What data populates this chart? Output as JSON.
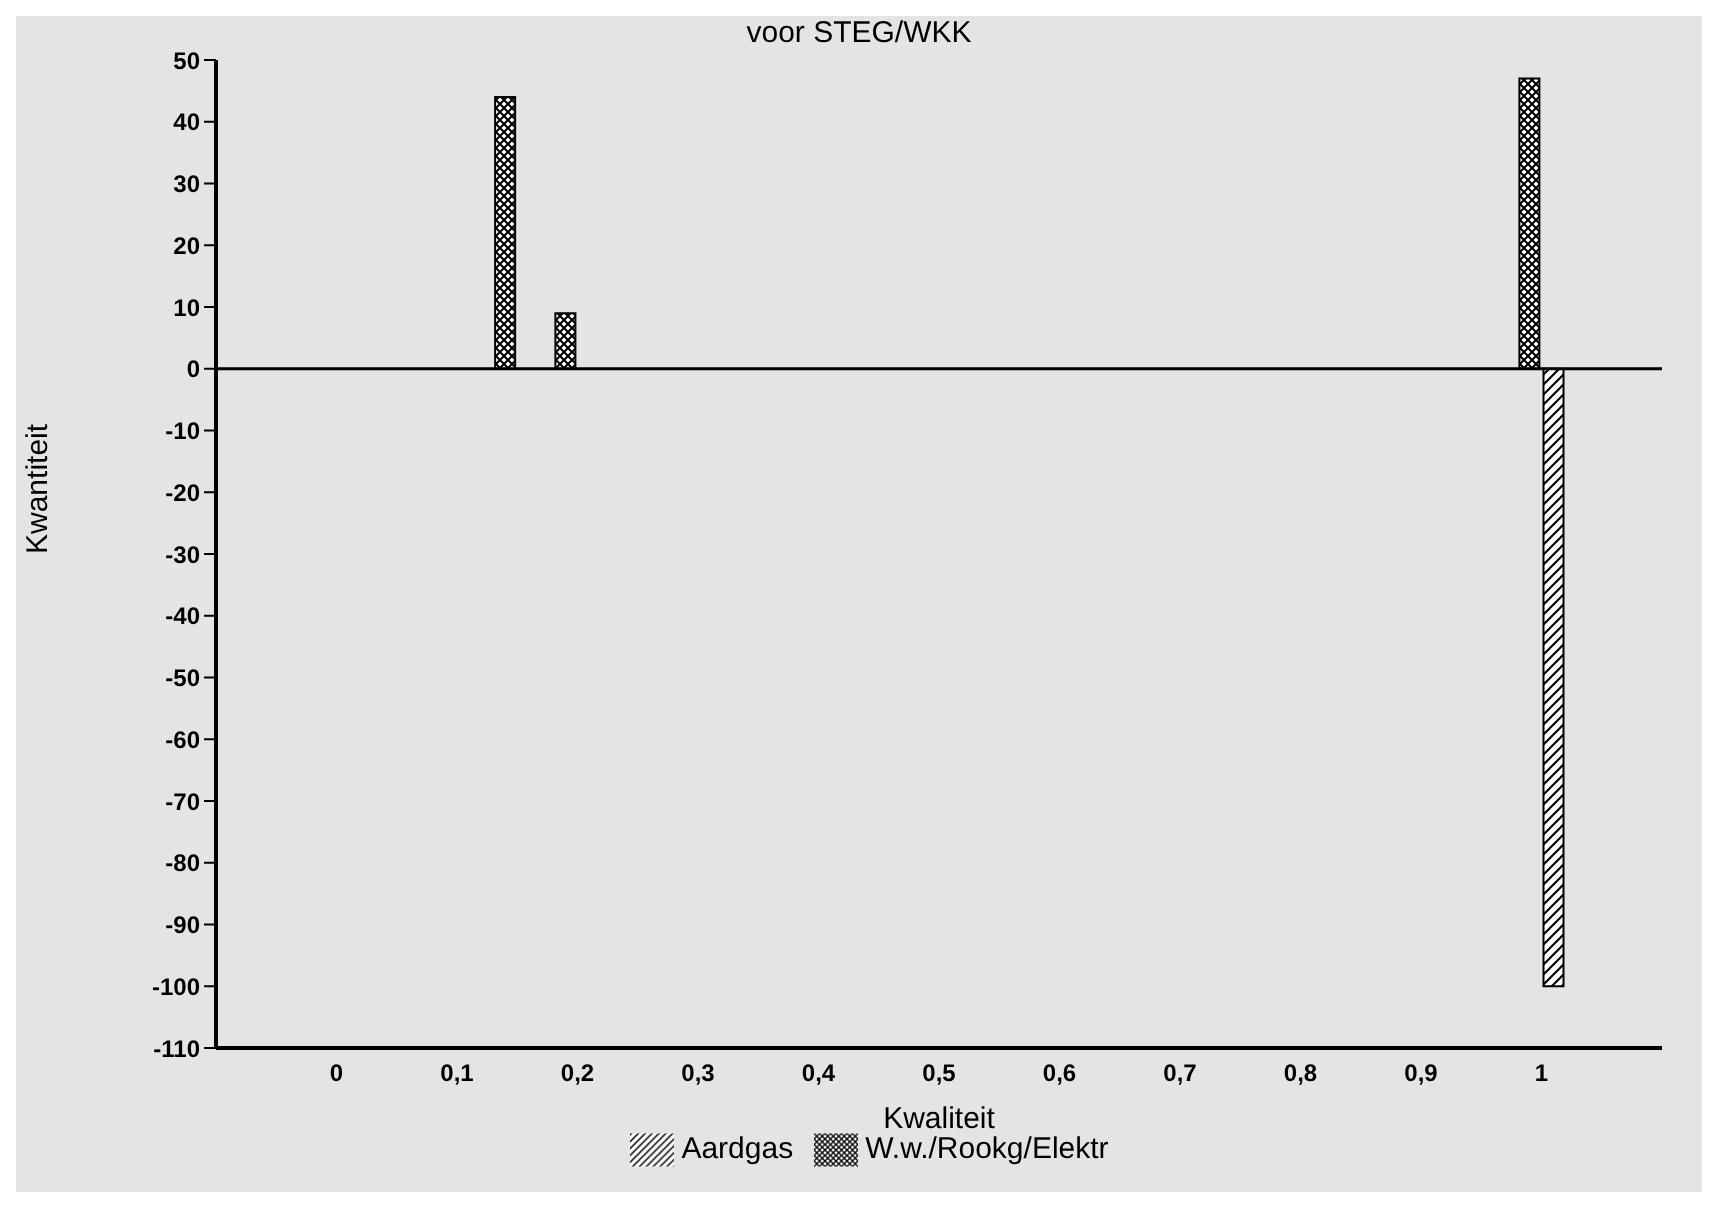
{
  "chart_data": {
    "type": "bar",
    "title": "voor STEG/WKK",
    "xlabel": "Kwaliteit",
    "ylabel": "Kwantiteit",
    "series": [
      {
        "name": "W.w./Rookg/Elektr",
        "color": "#000000",
        "x": [
          0.14,
          0.19,
          0.99
        ],
        "values": [
          44,
          9,
          47
        ]
      },
      {
        "name": "Aardgas",
        "color": "#000000",
        "x": [
          1.01
        ],
        "values": [
          -100
        ]
      }
    ],
    "xlim": [
      -0.1,
      1.1
    ],
    "xticks": [
      0,
      {
        "value": 0.1,
        "label": "0,1"
      },
      {
        "value": 0.2,
        "label": "0,2"
      },
      {
        "value": 0.3,
        "label": "0,3"
      },
      {
        "value": 0.4,
        "label": "0,4"
      },
      {
        "value": 0.5,
        "label": "0,5"
      },
      {
        "value": 0.6,
        "label": "0,6"
      },
      {
        "value": 0.7,
        "label": "0,7"
      },
      {
        "value": 0.8,
        "label": "0,8"
      },
      {
        "value": 0.9,
        "label": "0,9"
      },
      1
    ],
    "ylim": [
      -110,
      50
    ],
    "yticks": [
      50,
      40,
      30,
      20,
      10,
      0,
      -10,
      -20,
      -30,
      -40,
      -50,
      -60,
      -70,
      -80,
      -90,
      -100,
      -110
    ],
    "ref_lines": [
      {
        "axis": "y",
        "value": 0
      }
    ],
    "grid": false,
    "legend": "bottom"
  }
}
